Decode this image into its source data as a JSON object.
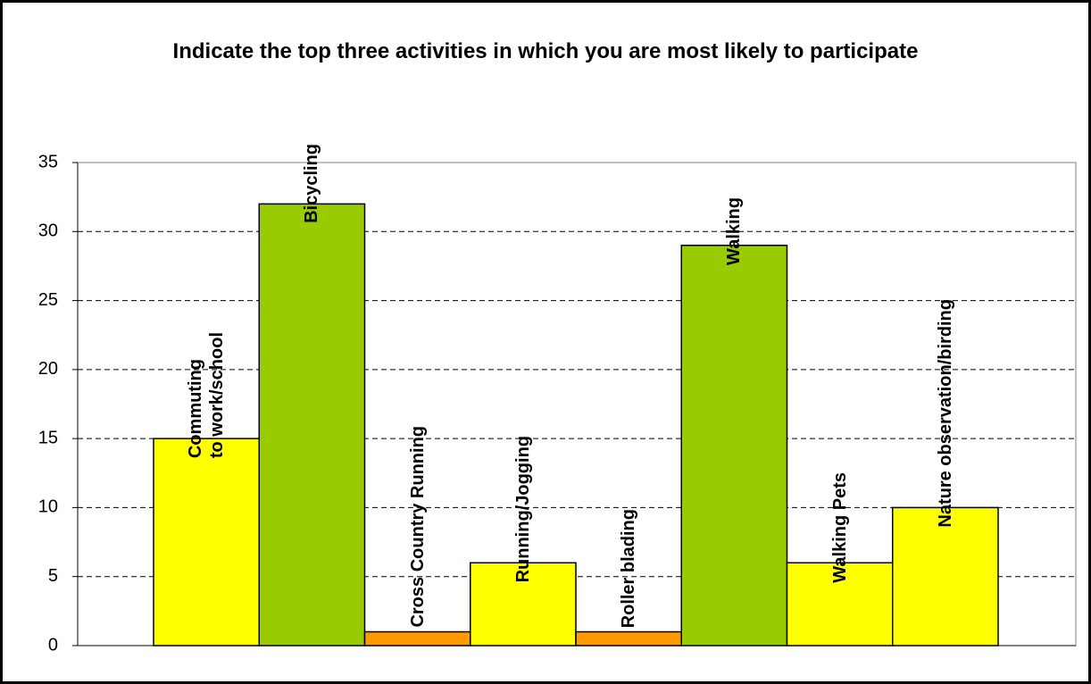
{
  "chart_data": {
    "type": "bar",
    "title": "Indicate the top three activities in which you are most likely to participate",
    "categories": [
      "Commuting\nto work/school",
      "Bicycling",
      "Cross Country Running",
      "Running/Jogging",
      "Roller blading",
      "Walking",
      "Walking Pets",
      "Nature observation/birding"
    ],
    "values": [
      15,
      32,
      1,
      6,
      1,
      29,
      6,
      10
    ],
    "colors": [
      "#ffff00",
      "#99cc00",
      "#ff9900",
      "#ffff00",
      "#ff9900",
      "#99cc00",
      "#ffff00",
      "#ffff00"
    ],
    "ylim": [
      0,
      35
    ],
    "yticks": [
      0,
      5,
      10,
      15,
      20,
      25,
      30,
      35
    ],
    "grid": true
  }
}
